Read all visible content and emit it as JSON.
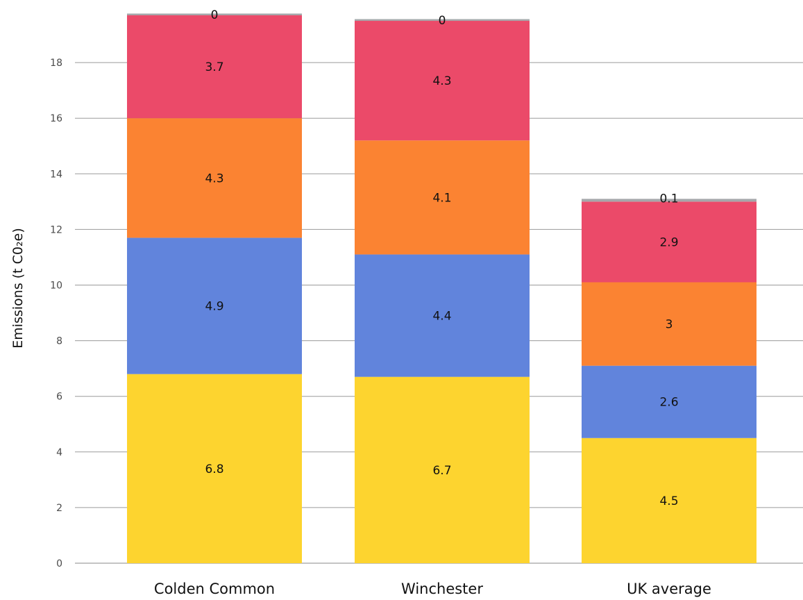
{
  "chart_data": {
    "type": "bar",
    "stacked": true,
    "title": "",
    "xlabel": "",
    "ylabel": "Emissions (t C0₂e)",
    "ylim": [
      0,
      19.8
    ],
    "yticks": [
      0,
      2,
      4,
      6,
      8,
      10,
      12,
      14,
      16,
      18
    ],
    "grid": true,
    "legend": "none",
    "categories": [
      "Colden Common",
      "Winchester",
      "UK average"
    ],
    "series": [
      {
        "values": [
          6.8,
          6.7,
          4.5
        ],
        "color": "#fdd42f"
      },
      {
        "values": [
          4.9,
          4.4,
          2.6
        ],
        "color": "#6184dc"
      },
      {
        "values": [
          4.3,
          4.1,
          3.0
        ],
        "color": "#fb8332"
      },
      {
        "values": [
          3.7,
          4.3,
          2.9
        ],
        "color": "#eb4a69"
      },
      {
        "values": [
          0,
          0,
          0.1
        ],
        "color": "#a6a8ab"
      }
    ],
    "data_labels": [
      [
        "6.8",
        "6.7",
        "4.5"
      ],
      [
        "4.9",
        "4.4",
        "2.6"
      ],
      [
        "4.3",
        "4.1",
        "3"
      ],
      [
        "3.7",
        "4.3",
        "2.9"
      ],
      [
        "0",
        "0",
        "0.1"
      ]
    ]
  }
}
